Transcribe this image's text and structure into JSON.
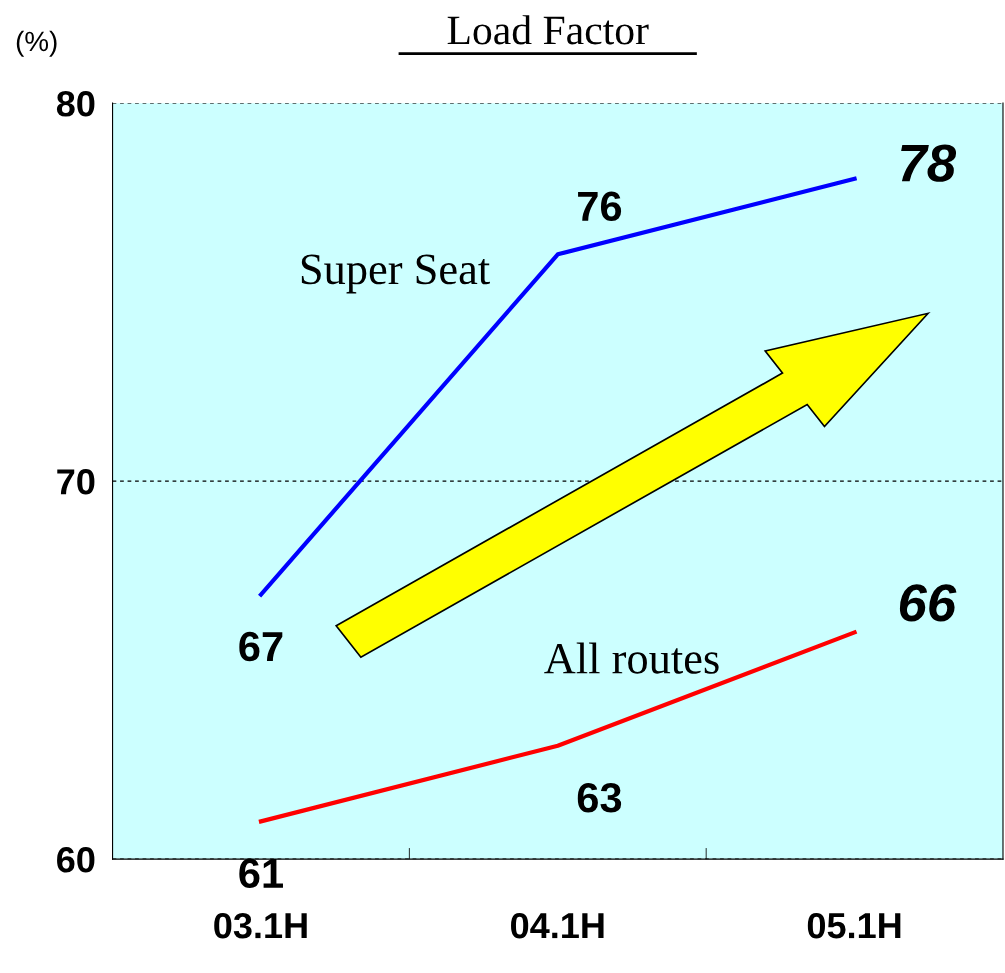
{
  "chart_data": {
    "type": "line",
    "title": "Load Factor",
    "ylabel": "(%)",
    "categories": [
      "03.1H",
      "04.1H",
      "05.1H"
    ],
    "series": [
      {
        "name": "Super Seat",
        "color": "#0000ff",
        "values": [
          67,
          76,
          78
        ]
      },
      {
        "name": "All routes",
        "color": "#ff0000",
        "values": [
          61,
          63,
          66
        ]
      }
    ],
    "ylim": [
      60,
      80
    ],
    "yticks": [
      60,
      70,
      80
    ],
    "grid": "y",
    "data_labels": true,
    "legend": false,
    "marker": "none",
    "line_style": "solid"
  }
}
